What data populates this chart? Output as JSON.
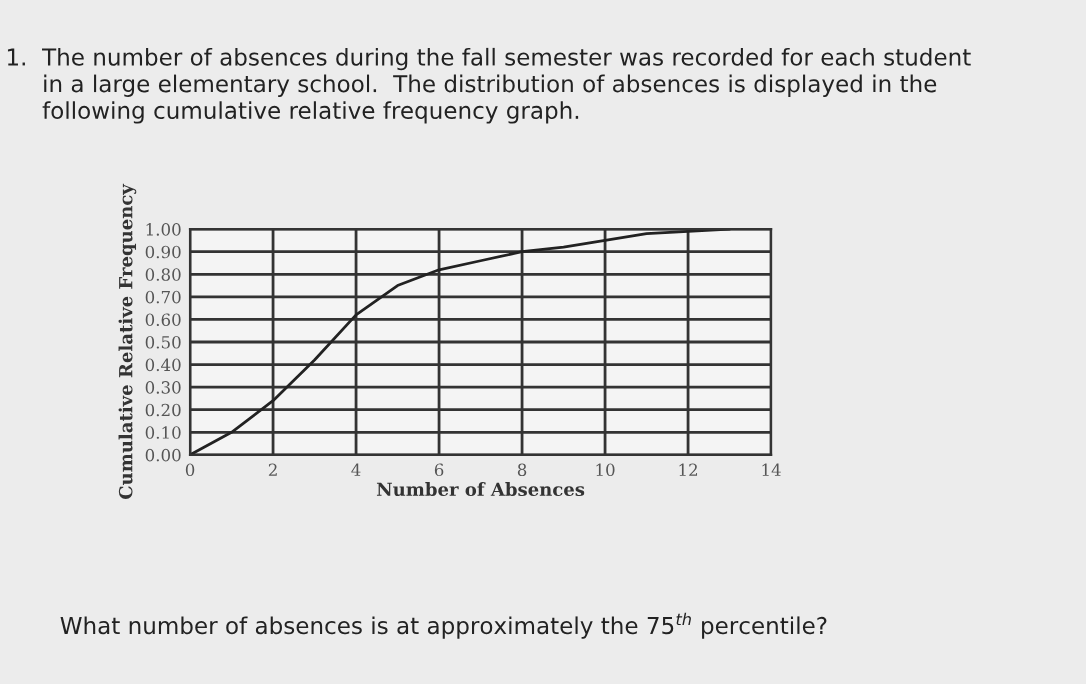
{
  "chart_data": {
    "type": "line",
    "title": "1.  The number of absences during the fall semester was recorded for each student\n     in a large elementary school.  The distribution of absences is displayed in the\n     following cumulative relative frequency graph.",
    "xlabel": "Number of Absences",
    "ylabel": "Cumulative Relative Frequency",
    "x": [
      0,
      1,
      2,
      3,
      4,
      5,
      6,
      7,
      8,
      9,
      10,
      11,
      12,
      13
    ],
    "series": [
      {
        "color": "#222222",
        "values": [
          0,
          0.1,
          0.24,
          0.42,
          0.62,
          0.75,
          0.82,
          0.86,
          0.9,
          0.92,
          0.95,
          0.98,
          0.99,
          1.0
        ]
      }
    ],
    "xlim": [
      0,
      14
    ],
    "xticks": [
      0,
      2,
      4,
      6,
      8,
      10,
      12,
      14
    ],
    "ylim": [
      0,
      1
    ],
    "yticks": [
      {
        "value": 0,
        "label": "0.00"
      },
      {
        "value": 0.1,
        "label": "0.10"
      },
      {
        "value": 0.2,
        "label": "0.20"
      },
      {
        "value": 0.3,
        "label": "0.30"
      },
      {
        "value": 0.4,
        "label": "0.40"
      },
      {
        "value": 0.5,
        "label": "0.50"
      },
      {
        "value": 0.6,
        "label": "0.60"
      },
      {
        "value": 0.7,
        "label": "0.70"
      },
      {
        "value": 0.8,
        "label": "0.80"
      },
      {
        "value": 0.9,
        "label": "0.90"
      },
      {
        "value": 1.0,
        "label": "1.00"
      }
    ],
    "grid": true,
    "marker": "none",
    "line_style": "solid",
    "annotations": [
      "What number of absences is at approximately the 75$^{th}$ percentile?"
    ]
  }
}
